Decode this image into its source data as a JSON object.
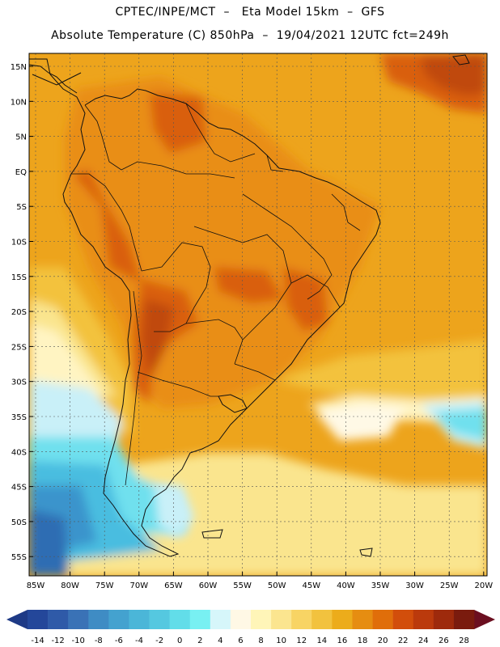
{
  "header": {
    "line1": "CPTEC/INPE/MCT  –   Eta Model 15km  –  GFS",
    "line2": "Absolute Temperature (C) 850hPa  –  19/04/2021 12UTC fct=249h"
  },
  "lat_labels": [
    "15N",
    "10N",
    "5N",
    "EQ",
    "5S",
    "10S",
    "15S",
    "20S",
    "25S",
    "30S",
    "35S",
    "40S",
    "45S",
    "50S",
    "55S"
  ],
  "lon_labels": [
    "85W",
    "80W",
    "75W",
    "70W",
    "65W",
    "60W",
    "55W",
    "50W",
    "45W",
    "40W",
    "35W",
    "30W",
    "25W",
    "20W"
  ],
  "colorbar": {
    "ticks": [
      "-14",
      "-12",
      "-10",
      "-8",
      "-6",
      "-4",
      "-2",
      "0",
      "2",
      "4",
      "6",
      "8",
      "10",
      "12",
      "14",
      "16",
      "18",
      "20",
      "22",
      "24",
      "26",
      "28"
    ],
    "colors": [
      "#24479a",
      "#2f5aa8",
      "#3a72b6",
      "#3f8cc4",
      "#44a2cf",
      "#4bb6d8",
      "#55c8e0",
      "#62dde9",
      "#78f0f2",
      "#d6f6fa",
      "#fff8e5",
      "#fff5b8",
      "#fbe58f",
      "#f8d464",
      "#f2c23e",
      "#ecac1b",
      "#e68d11",
      "#e06e0a",
      "#d24e0b",
      "#bb3a0c",
      "#9e2a0c",
      "#7a1b0e"
    ],
    "low_arrow": "#1e3a86",
    "high_arrow": "#6b0f20"
  },
  "field_colors": {
    "ocean_warm": "#eda41c",
    "land_warm": "#e98e12",
    "hot": "#d95f10",
    "very_hot": "#c04a0c",
    "mild": "#f3c23c",
    "cool": "#fae58e",
    "pale": "#fff4c2",
    "cream": "#fff9e6",
    "cyan_light": "#c9f0f8",
    "cyan": "#6fe0ee",
    "blue_light": "#48bde0",
    "blue": "#3a94cc",
    "blue_dark": "#2f6db3"
  }
}
